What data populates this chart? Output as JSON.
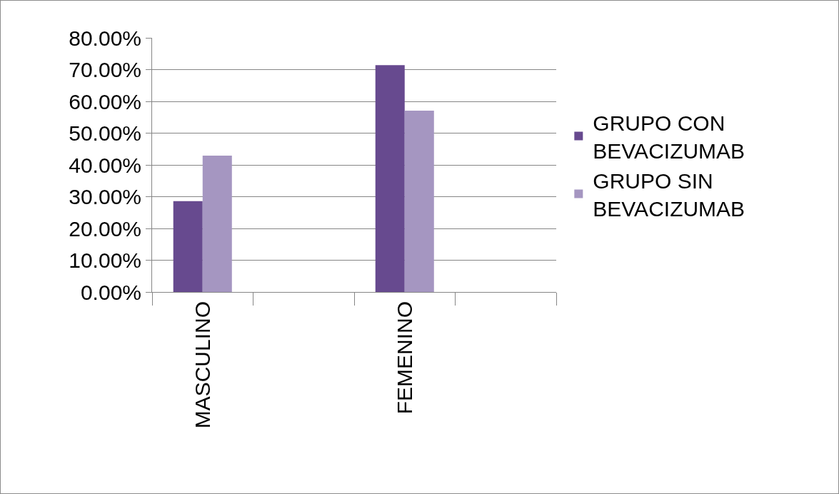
{
  "chart_data": {
    "type": "bar",
    "categories": [
      "MASCULINO",
      null,
      "FEMENINO",
      null
    ],
    "series": [
      {
        "name": "GRUPO CON BEVACIZUMAB",
        "color": "#674a8f",
        "values": [
          28.6,
          null,
          71.4,
          null
        ]
      },
      {
        "name": "GRUPO SIN BEVACIZUMAB",
        "color": "#a596c1",
        "values": [
          42.9,
          null,
          57.1,
          null
        ]
      }
    ],
    "ylim": [
      0,
      80
    ],
    "yticks": [
      {
        "value": 0,
        "label": "0.00%"
      },
      {
        "value": 10,
        "label": "10.00%"
      },
      {
        "value": 20,
        "label": "20.00%"
      },
      {
        "value": 30,
        "label": "30.00%"
      },
      {
        "value": 40,
        "label": "40.00%"
      },
      {
        "value": 50,
        "label": "50.00%"
      },
      {
        "value": 60,
        "label": "60.00%"
      },
      {
        "value": 70,
        "label": "70.00%"
      },
      {
        "value": 80,
        "label": "80.00%"
      }
    ],
    "grid": "y",
    "legend": "right"
  }
}
